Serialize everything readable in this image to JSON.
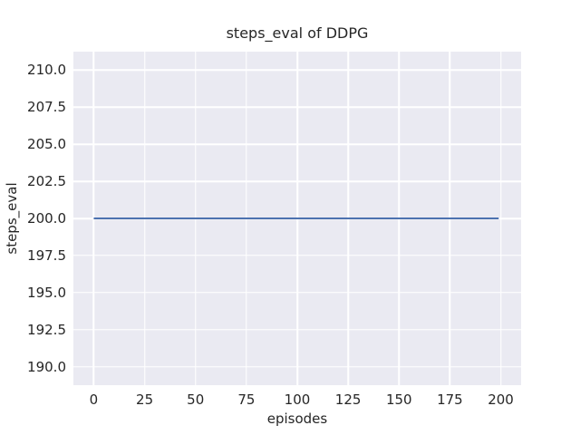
{
  "chart_data": {
    "type": "line",
    "title": "steps_eval of DDPG",
    "xlabel": "episodes",
    "ylabel": "steps_eval",
    "x_ticks": [
      0,
      25,
      50,
      75,
      100,
      125,
      150,
      175,
      200
    ],
    "y_ticks": [
      "190.0",
      "192.5",
      "195.0",
      "197.5",
      "200.0",
      "202.5",
      "205.0",
      "207.5",
      "210.0"
    ],
    "xlim": [
      -10,
      210
    ],
    "ylim": [
      188.75,
      211.25
    ],
    "grid": true,
    "legend_position": "none",
    "series": [
      {
        "name": "steps_eval of DDPG",
        "color": "#4c72b0",
        "x": [
          0,
          199
        ],
        "y": [
          200,
          200
        ]
      }
    ]
  },
  "colors": {
    "figure_background": "#ffffff",
    "plot_background": "#eaeaf2",
    "gridline": "#ffffff",
    "text": "#262626",
    "line": "#4c72b0"
  }
}
